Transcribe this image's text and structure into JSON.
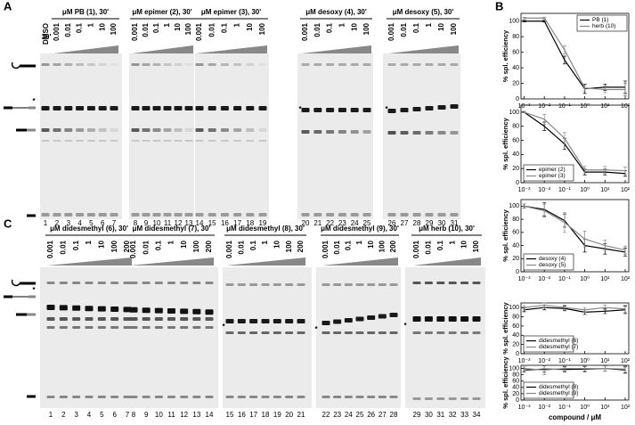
{
  "figure": {
    "panel_a": {
      "label": "A",
      "marker": "*",
      "dmso": {
        "label": "DMSO",
        "time": "30'",
        "lane": 1
      },
      "groups": [
        {
          "title": "μM PB (1), 30'",
          "concentrations": [
            "0.001",
            "0.01",
            "0.1",
            "1",
            "10",
            "100"
          ],
          "lanes": [
            2,
            3,
            4,
            5,
            6,
            7
          ]
        },
        {
          "title": "μM epimer (2), 30'",
          "concentrations": [
            "0.001",
            "0.01",
            "0.1",
            "1",
            "10",
            "100"
          ],
          "lanes": [
            8,
            9,
            10,
            11,
            12,
            13
          ]
        },
        {
          "title": "μM epimer (3), 30'",
          "concentrations": [
            "0.001",
            "0.01",
            "0.1",
            "1",
            "10",
            "100"
          ],
          "lanes": [
            14,
            15,
            16,
            17,
            18,
            19
          ]
        },
        {
          "title": "μM desoxy (4), 30'",
          "concentrations": [
            "0.001",
            "0.01",
            "0.1",
            "1",
            "10",
            "100"
          ],
          "lanes": [
            20,
            21,
            22,
            23,
            24,
            25
          ]
        },
        {
          "title": "μM desoxy (5), 30'",
          "concentrations": [
            "0.001",
            "0.01",
            "0.1",
            "1",
            "10",
            "100"
          ],
          "lanes": [
            26,
            27,
            28,
            29,
            30,
            31
          ]
        }
      ]
    },
    "panel_b": {
      "label": "B"
    },
    "panel_c": {
      "label": "C",
      "marker": "*",
      "groups": [
        {
          "title": "μM didesmethyl (6), 30'",
          "concentrations": [
            "0.001",
            "0.01",
            "0.1",
            "1",
            "10",
            "100",
            "200"
          ],
          "lanes": [
            1,
            2,
            3,
            4,
            5,
            6,
            7
          ]
        },
        {
          "title": "μM didesmethyl (7), 30'",
          "concentrations": [
            "0.001",
            "0.01",
            "0.1",
            "1",
            "10",
            "100",
            "200"
          ],
          "lanes": [
            8,
            9,
            10,
            11,
            12,
            13,
            14
          ]
        },
        {
          "title": "μM didesmethyl (8), 30'",
          "concentrations": [
            "0.001",
            "0.01",
            "0.1",
            "1",
            "10",
            "100",
            "200"
          ],
          "lanes": [
            15,
            16,
            17,
            18,
            19,
            20,
            21
          ]
        },
        {
          "title": "μM didesmethyl (9), 30'",
          "concentrations": [
            "0.001",
            "0.01",
            "0.1",
            "1",
            "10",
            "100",
            "200"
          ],
          "lanes": [
            22,
            23,
            24,
            25,
            26,
            27,
            28
          ]
        },
        {
          "title": "μM herb (10), 30'",
          "concentrations": [
            "0.001",
            "0.01",
            "0.1",
            "1",
            "10",
            "100"
          ],
          "lanes": [
            29,
            30,
            31,
            32,
            33,
            34
          ]
        }
      ]
    }
  },
  "chart_data": [
    {
      "type": "line",
      "y_label": "% spl. efficiency",
      "x": [
        0.001,
        0.01,
        0.1,
        1,
        10,
        100
      ],
      "log_x": true,
      "legend": "upper right",
      "xlim": [
        0.0007,
        150
      ],
      "ylim": [
        0,
        110
      ],
      "yticks": [
        0,
        20,
        40,
        60,
        80,
        100
      ],
      "xticks": [
        {
          "value": 0.001,
          "label": "10⁻³"
        },
        {
          "value": 0.01,
          "label": "10⁻²"
        },
        {
          "value": 0.1,
          "label": "10⁻¹"
        },
        {
          "value": 1,
          "label": "10⁰"
        },
        {
          "value": 10,
          "label": "10¹"
        },
        {
          "value": 100,
          "label": "10²"
        }
      ],
      "series": [
        {
          "name": "PB (1)",
          "color": "#000000",
          "values": [
            100,
            100,
            50,
            13,
            15,
            15
          ],
          "errors": [
            1,
            1,
            5,
            6,
            4,
            8
          ]
        },
        {
          "name": "herb (10)",
          "color": "#888888",
          "values": [
            104,
            104,
            63,
            14,
            12,
            12
          ],
          "errors": [
            1,
            1,
            5,
            4,
            4,
            8
          ]
        }
      ]
    },
    {
      "type": "line",
      "y_label": "% spl. efficiency",
      "x": [
        0.001,
        0.01,
        0.1,
        1,
        10,
        100
      ],
      "log_x": true,
      "legend": "lower left",
      "xlim": [
        0.0007,
        150
      ],
      "ylim": [
        0,
        110
      ],
      "yticks": [
        0,
        20,
        40,
        60,
        80,
        100
      ],
      "xticks": [
        {
          "value": 0.001,
          "label": "10⁻³"
        },
        {
          "value": 0.01,
          "label": "10⁻²"
        },
        {
          "value": 0.1,
          "label": "10⁻¹"
        },
        {
          "value": 1,
          "label": "10⁰"
        },
        {
          "value": 10,
          "label": "10¹"
        },
        {
          "value": 100,
          "label": "10²"
        }
      ],
      "series": [
        {
          "name": "epimer (2)",
          "color": "#000000",
          "values": [
            100,
            80,
            55,
            15,
            15,
            13
          ],
          "errors": [
            1,
            6,
            8,
            4,
            4,
            4
          ]
        },
        {
          "name": "epimer (3)",
          "color": "#888888",
          "values": [
            100,
            90,
            63,
            18,
            18,
            17
          ],
          "errors": [
            1,
            7,
            8,
            5,
            5,
            5
          ]
        }
      ]
    },
    {
      "type": "line",
      "y_label": "% spl. efficiency",
      "x": [
        0.001,
        0.01,
        0.1,
        1,
        10,
        100
      ],
      "log_x": true,
      "legend": "lower left",
      "xlim": [
        0.0007,
        150
      ],
      "ylim": [
        0,
        110
      ],
      "yticks": [
        0,
        20,
        40,
        60,
        80,
        100
      ],
      "xticks": [
        {
          "value": 0.001,
          "label": "10⁻³"
        },
        {
          "value": 0.01,
          "label": "10⁻²"
        },
        {
          "value": 0.1,
          "label": "10⁻¹"
        },
        {
          "value": 1,
          "label": "10⁰"
        },
        {
          "value": 10,
          "label": "10¹"
        },
        {
          "value": 100,
          "label": "10²"
        }
      ],
      "series": [
        {
          "name": "desoxy (4)",
          "color": "#000000",
          "values": [
            100,
            95,
            78,
            40,
            35,
            30
          ],
          "errors": [
            3,
            10,
            10,
            10,
            8,
            6
          ]
        },
        {
          "name": "desoxy (5)",
          "color": "#888888",
          "values": [
            100,
            93,
            75,
            50,
            40,
            33
          ],
          "errors": [
            3,
            10,
            15,
            12,
            8,
            6
          ]
        }
      ]
    },
    {
      "type": "line",
      "y_label": "% spl. efficiency",
      "x": [
        0.001,
        0.01,
        0.1,
        1,
        10,
        100
      ],
      "log_x": true,
      "legend": "lower left",
      "xlim": [
        0.0007,
        150
      ],
      "ylim": [
        0,
        110
      ],
      "yticks": [
        0,
        20,
        40,
        60,
        80,
        100
      ],
      "xticks": [
        {
          "value": 0.001,
          "label": "10⁻³"
        },
        {
          "value": 0.01,
          "label": "10⁻²"
        },
        {
          "value": 0.1,
          "label": "10⁻¹"
        },
        {
          "value": 1,
          "label": "10⁰"
        },
        {
          "value": 10,
          "label": "10¹"
        },
        {
          "value": 100,
          "label": "10²"
        }
      ],
      "series": [
        {
          "name": "didesmethyl (6)",
          "color": "#000000",
          "values": [
            95,
            100,
            98,
            90,
            92,
            95
          ],
          "errors": [
            4,
            5,
            5,
            5,
            5,
            8
          ]
        },
        {
          "name": "didesmethyl (7)",
          "color": "#888888",
          "values": [
            100,
            105,
            100,
            95,
            100,
            97
          ],
          "errors": [
            4,
            5,
            5,
            5,
            5,
            8
          ]
        }
      ]
    },
    {
      "type": "line",
      "y_label": "% spl. efficiency",
      "x_label": "compound / μM",
      "x": [
        0.001,
        0.01,
        0.1,
        1,
        10,
        100
      ],
      "log_x": true,
      "legend": "lower left",
      "xlim": [
        0.0007,
        150
      ],
      "ylim": [
        0,
        110
      ],
      "yticks": [
        0,
        20,
        40,
        60,
        80,
        100
      ],
      "xticks": [
        {
          "value": 0.001,
          "label": "10⁻³"
        },
        {
          "value": 0.01,
          "label": "10⁻²"
        },
        {
          "value": 0.1,
          "label": "10⁻¹"
        },
        {
          "value": 1,
          "label": "10⁰"
        },
        {
          "value": 10,
          "label": "10¹"
        },
        {
          "value": 100,
          "label": "10²"
        }
      ],
      "series": [
        {
          "name": "didesmethyl (8)",
          "color": "#000000",
          "values": [
            95,
            98,
            97,
            98,
            100,
            95
          ],
          "errors": [
            6,
            10,
            8,
            8,
            8,
            10
          ]
        },
        {
          "name": "didesmethyl (9)",
          "color": "#888888",
          "values": [
            100,
            95,
            100,
            100,
            100,
            98
          ],
          "errors": [
            6,
            15,
            8,
            8,
            8,
            10
          ]
        }
      ]
    }
  ]
}
